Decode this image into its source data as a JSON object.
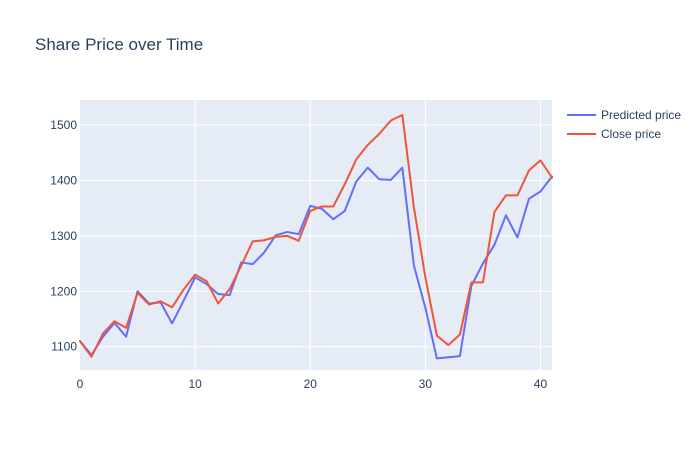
{
  "chart_data": {
    "type": "line",
    "title": "Share Price over Time",
    "xlabel": "",
    "ylabel": "",
    "xlim": [
      0,
      41
    ],
    "ylim": [
      1058,
      1545
    ],
    "x_ticks": [
      0,
      10,
      20,
      30,
      40
    ],
    "y_ticks": [
      1100,
      1200,
      1300,
      1400,
      1500
    ],
    "grid": true,
    "legend_position": "top-right",
    "x": [
      0,
      1,
      2,
      3,
      4,
      5,
      6,
      7,
      8,
      9,
      10,
      11,
      12,
      13,
      14,
      15,
      16,
      17,
      18,
      19,
      20,
      21,
      22,
      23,
      24,
      25,
      26,
      27,
      28,
      29,
      30,
      31,
      32,
      33,
      34,
      35,
      36,
      37,
      38,
      39,
      40,
      41
    ],
    "series": [
      {
        "name": "Predicted price",
        "color": "#636efa",
        "values": [
          1110,
          1085,
          1118,
          1143,
          1118,
          1200,
          1178,
          1180,
          1142,
          1183,
          1225,
          1213,
          1195,
          1193,
          1252,
          1249,
          1270,
          1301,
          1307,
          1303,
          1354,
          1349,
          1330,
          1345,
          1398,
          1423,
          1402,
          1401,
          1423,
          1247,
          1170,
          1079,
          1081,
          1083,
          1210,
          1250,
          1284,
          1337,
          1297,
          1367,
          1380,
          1407
        ]
      },
      {
        "name": "Close price",
        "color": "#ef553b",
        "values": [
          1110,
          1082,
          1124,
          1146,
          1134,
          1197,
          1176,
          1182,
          1171,
          1203,
          1230,
          1218,
          1178,
          1204,
          1246,
          1290,
          1292,
          1298,
          1300,
          1291,
          1345,
          1353,
          1353,
          1393,
          1438,
          1464,
          1484,
          1508,
          1518,
          1352,
          1225,
          1120,
          1103,
          1122,
          1216,
          1216,
          1343,
          1373,
          1373,
          1418,
          1436,
          1405
        ]
      }
    ]
  }
}
